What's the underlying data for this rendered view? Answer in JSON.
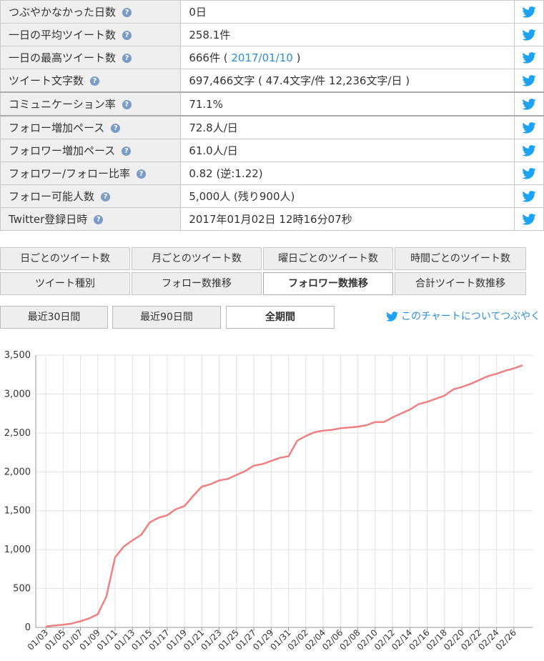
{
  "stats": [
    {
      "label": "つぶやかなかった日数",
      "value": "0日",
      "thick": false
    },
    {
      "label": "一日の平均ツイート数",
      "value": "258.1件",
      "thick": false
    },
    {
      "label": "一日の最高ツイート数",
      "value": "666件 (",
      "link": "2017/01/10",
      "value_after": ")",
      "thick": false
    },
    {
      "label": "ツイート文字数",
      "value": "697,466文字 ( 47.4文字/件 12,236文字/日 )",
      "thick": false
    },
    {
      "label": "コミュニケーション率",
      "value": "71.1%",
      "thick": true
    },
    {
      "label": "フォロー増加ペース",
      "value": "72.8人/日",
      "thick": true
    },
    {
      "label": "フォロワー増加ペース",
      "value": "61.0人/日",
      "thick": false
    },
    {
      "label": "フォロワー/フォロー比率",
      "value": "0.82 (逆:1.22)",
      "thick": false
    },
    {
      "label": "フォロー可能人数",
      "value": "5,000人 (残り900人)",
      "thick": false
    },
    {
      "label": "Twitter登録日時",
      "value": "2017年01月02日 12時16分07秒",
      "thick": false
    }
  ],
  "tabs_row1": [
    "日ごとのツイート数",
    "月ごとのツイート数",
    "曜日ごとのツイート数",
    "時間ごとのツイート数"
  ],
  "tabs_row2": [
    "ツイート種別",
    "フォロー数推移",
    "フォロワー数推移",
    "合計ツイート数推移"
  ],
  "active_tab": "フォロワー数推移",
  "periods": [
    "最近30日間",
    "最近90日間",
    "全期間"
  ],
  "active_period": "全期間",
  "share_text": "このチャートについてつぶやく",
  "colors": {
    "twitter": "#1da1f2",
    "line": "#f08080",
    "link": "#2a8fd8"
  },
  "chart_data": {
    "type": "line",
    "title": "",
    "xlabel": "",
    "ylabel": "",
    "ylim": [
      0,
      3500
    ],
    "yticks": [
      0,
      500,
      1000,
      1500,
      2000,
      2500,
      3000,
      3500
    ],
    "ytick_labels": [
      "0",
      "500",
      "1,000",
      "1,500",
      "2,000",
      "2,500",
      "3,000",
      "3,500"
    ],
    "grid": true,
    "x": [
      "01/03",
      "01/04",
      "01/05",
      "01/06",
      "01/07",
      "01/08",
      "01/09",
      "01/10",
      "01/11",
      "01/12",
      "01/13",
      "01/14",
      "01/15",
      "01/16",
      "01/17",
      "01/18",
      "01/19",
      "01/20",
      "01/21",
      "01/22",
      "01/23",
      "01/24",
      "01/25",
      "01/26",
      "01/27",
      "01/28",
      "01/29",
      "01/30",
      "01/31",
      "02/01",
      "02/02",
      "02/03",
      "02/04",
      "02/05",
      "02/06",
      "02/07",
      "02/08",
      "02/09",
      "02/10",
      "02/11",
      "02/12",
      "02/13",
      "02/14",
      "02/15",
      "02/16",
      "02/17",
      "02/18",
      "02/19",
      "02/20",
      "02/21",
      "02/22",
      "02/23",
      "02/24",
      "02/25",
      "02/26",
      "02/27"
    ],
    "x_tick_labels": [
      "01/03",
      "01/05",
      "01/07",
      "01/09",
      "01/11",
      "01/13",
      "01/15",
      "01/17",
      "01/19",
      "01/21",
      "01/23",
      "01/25",
      "01/27",
      "01/29",
      "01/31",
      "02/02",
      "02/04",
      "02/06",
      "02/08",
      "02/10",
      "02/12",
      "02/14",
      "02/16",
      "02/18",
      "02/20",
      "02/22",
      "02/24",
      "02/26"
    ],
    "series": [
      {
        "values": [
          10,
          25,
          35,
          50,
          80,
          115,
          170,
          400,
          900,
          1040,
          1120,
          1190,
          1350,
          1410,
          1440,
          1520,
          1560,
          1690,
          1810,
          1840,
          1890,
          1910,
          1960,
          2010,
          2080,
          2100,
          2140,
          2180,
          2200,
          2400,
          2460,
          2510,
          2530,
          2540,
          2560,
          2570,
          2580,
          2600,
          2640,
          2640,
          2700,
          2750,
          2800,
          2870,
          2900,
          2940,
          2980,
          3060,
          3090,
          3130,
          3180,
          3230,
          3260,
          3300,
          3330,
          3370
        ]
      }
    ]
  }
}
